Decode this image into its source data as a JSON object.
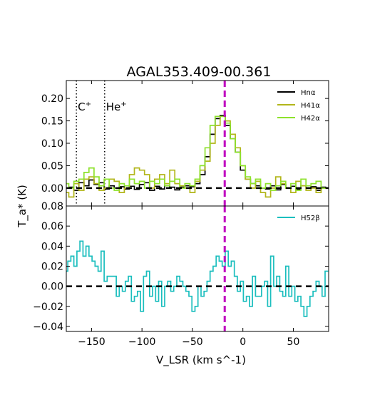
{
  "figure": {
    "title": "AGAL353.409-00.361",
    "xlabel": "V_LSR (km s^-1)",
    "ylabel": "T_a* (K)"
  },
  "chart_data": [
    {
      "type": "line",
      "panel": "top",
      "title": "AGAL353.409-00.361",
      "xlim": [
        -175,
        85
      ],
      "ylim": [
        -0.04,
        0.24
      ],
      "yticks": [
        0.0,
        0.05,
        0.1,
        0.15,
        0.2
      ],
      "xticks": [
        -150,
        -100,
        -50,
        0,
        50
      ],
      "grid": false,
      "legend": "top-right",
      "annotations": [
        {
          "text": "C+",
          "x": -165
        },
        {
          "text": "He+",
          "x": -137
        }
      ],
      "reference_lines": {
        "baseline_y": 0.0,
        "vertical_x": -18
      },
      "x": [
        -175,
        -170,
        -165,
        -160,
        -155,
        -150,
        -145,
        -140,
        -135,
        -130,
        -125,
        -120,
        -115,
        -110,
        -105,
        -100,
        -95,
        -90,
        -85,
        -80,
        -75,
        -70,
        -65,
        -60,
        -55,
        -50,
        -45,
        -40,
        -35,
        -30,
        -25,
        -20,
        -15,
        -10,
        -5,
        0,
        5,
        10,
        15,
        20,
        25,
        30,
        35,
        40,
        45,
        50,
        55,
        60,
        65,
        70,
        75,
        80
      ],
      "series": [
        {
          "name": "Hnα",
          "color": "#000000",
          "values": [
            0.0,
            0.002,
            -0.005,
            0.012,
            0.005,
            0.018,
            0.008,
            0.012,
            -0.002,
            0.005,
            0.0,
            0.003,
            -0.002,
            0.004,
            -0.003,
            0.008,
            0.012,
            -0.005,
            0.004,
            -0.002,
            0.005,
            0.002,
            -0.004,
            0.002,
            0.005,
            0.003,
            0.01,
            0.03,
            0.07,
            0.12,
            0.155,
            0.162,
            0.14,
            0.11,
            0.08,
            0.04,
            0.02,
            0.01,
            0.005,
            0.0,
            -0.002,
            0.005,
            -0.004,
            0.008,
            0.0,
            0.004,
            -0.003,
            0.005,
            0.0,
            0.003,
            -0.005,
            0.002
          ]
        },
        {
          "name": "H41α",
          "color": "#b2b61a",
          "values": [
            -0.01,
            -0.02,
            0.01,
            -0.005,
            0.02,
            0.025,
            0.01,
            -0.005,
            0.0,
            0.02,
            0.015,
            -0.01,
            0.0,
            0.03,
            0.045,
            0.04,
            0.03,
            0.0,
            0.02,
            0.03,
            0.01,
            0.04,
            0.01,
            0.005,
            0.0,
            -0.01,
            0.015,
            0.04,
            0.06,
            0.1,
            0.14,
            0.16,
            0.15,
            0.12,
            0.09,
            0.05,
            0.02,
            0.0,
            0.015,
            -0.01,
            -0.02,
            0.0,
            0.025,
            0.01,
            0.0,
            -0.01,
            0.015,
            0.005,
            -0.005,
            0.0,
            -0.01,
            0.0
          ]
        },
        {
          "name": "H42α",
          "color": "#8ee22c",
          "values": [
            0.01,
            0.0,
            0.015,
            0.02,
            0.035,
            0.045,
            0.025,
            0.005,
            0.02,
            0.0,
            -0.005,
            0.01,
            0.005,
            0.02,
            0.01,
            0.015,
            0.0,
            0.015,
            0.01,
            0.02,
            0.005,
            0.015,
            0.02,
            0.0,
            0.01,
            0.005,
            0.02,
            0.05,
            0.09,
            0.14,
            0.16,
            0.16,
            0.145,
            0.11,
            0.08,
            0.05,
            0.025,
            0.01,
            0.02,
            0.0,
            0.01,
            -0.005,
            0.005,
            0.015,
            0.0,
            0.01,
            -0.005,
            0.02,
            0.005,
            0.01,
            0.015,
            0.0
          ]
        }
      ]
    },
    {
      "type": "line",
      "panel": "bottom",
      "xlim": [
        -175,
        85
      ],
      "ylim": [
        -0.045,
        0.08
      ],
      "yticks": [
        -0.04,
        -0.02,
        0.0,
        0.02,
        0.04,
        0.06,
        0.08
      ],
      "xticks": [
        -150,
        -100,
        -50,
        0,
        50
      ],
      "xlabel": "V_LSR (km s^-1)",
      "grid": false,
      "legend": "top-right",
      "reference_lines": {
        "baseline_y": 0.0,
        "vertical_x": -18
      },
      "x": [
        -175,
        -172,
        -169,
        -166,
        -163,
        -160,
        -157,
        -154,
        -151,
        -148,
        -145,
        -142,
        -139,
        -136,
        -133,
        -130,
        -127,
        -124,
        -121,
        -118,
        -115,
        -112,
        -109,
        -106,
        -103,
        -100,
        -97,
        -94,
        -91,
        -88,
        -85,
        -82,
        -79,
        -76,
        -73,
        -70,
        -67,
        -64,
        -61,
        -58,
        -55,
        -52,
        -49,
        -46,
        -43,
        -40,
        -37,
        -34,
        -31,
        -28,
        -25,
        -22,
        -19,
        -16,
        -13,
        -10,
        -7,
        -4,
        -1,
        2,
        5,
        8,
        11,
        14,
        17,
        20,
        23,
        26,
        29,
        32,
        35,
        38,
        41,
        44,
        47,
        50,
        53,
        56,
        59,
        62,
        65,
        68,
        71,
        74,
        77,
        80,
        83
      ],
      "series": [
        {
          "name": "H52β",
          "color": "#1bbebe",
          "values": [
            0.015,
            0.025,
            0.03,
            0.02,
            0.035,
            0.045,
            0.03,
            0.04,
            0.03,
            0.025,
            0.02,
            0.015,
            0.035,
            0.005,
            0.01,
            0.01,
            0.01,
            -0.01,
            0.0,
            -0.005,
            0.005,
            0.01,
            -0.015,
            -0.01,
            -0.005,
            -0.025,
            0.01,
            0.015,
            -0.01,
            0.0,
            -0.015,
            0.005,
            -0.02,
            0.0,
            0.005,
            -0.005,
            0.0,
            0.01,
            0.005,
            0.0,
            -0.005,
            -0.01,
            -0.025,
            -0.02,
            0.0,
            -0.01,
            -0.005,
            0.005,
            0.015,
            0.02,
            0.03,
            0.025,
            0.02,
            0.035,
            0.02,
            0.025,
            0.01,
            -0.005,
            0.005,
            -0.015,
            -0.01,
            -0.02,
            0.01,
            -0.01,
            -0.01,
            0.0,
            0.005,
            -0.02,
            0.03,
            0.0,
            0.01,
            -0.005,
            -0.01,
            0.02,
            -0.01,
            0.0,
            -0.015,
            -0.01,
            -0.02,
            -0.03,
            -0.02,
            -0.01,
            -0.005,
            0.005,
            0.0,
            -0.01,
            0.015
          ]
        }
      ]
    }
  ]
}
